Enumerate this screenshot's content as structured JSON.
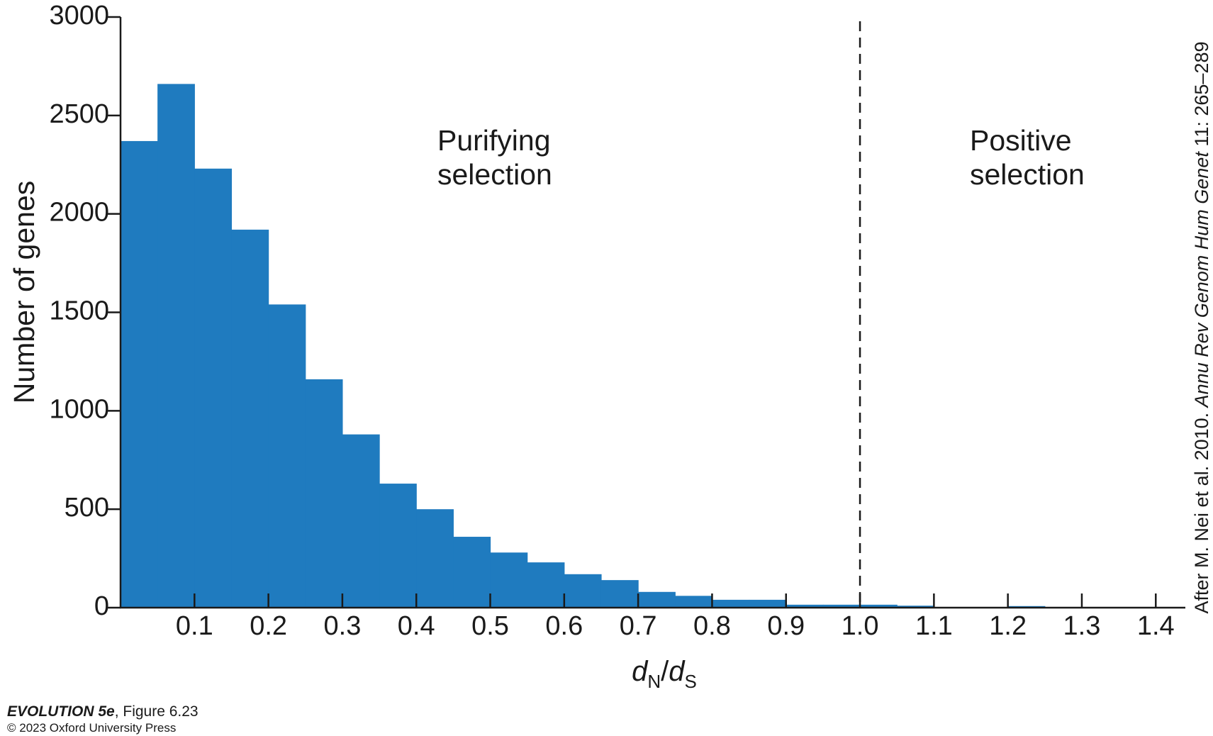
{
  "chart_data": {
    "type": "bar",
    "bin_width": 0.05,
    "bin_starts": [
      0.0,
      0.05,
      0.1,
      0.15,
      0.2,
      0.25,
      0.3,
      0.35,
      0.4,
      0.45,
      0.5,
      0.55,
      0.6,
      0.65,
      0.7,
      0.75,
      0.8,
      0.85,
      0.9,
      0.95,
      1.0,
      1.05,
      1.1,
      1.15,
      1.2
    ],
    "values": [
      2370,
      2660,
      2230,
      1920,
      1540,
      1160,
      880,
      630,
      500,
      360,
      280,
      230,
      170,
      140,
      80,
      60,
      40,
      40,
      15,
      15,
      15,
      10,
      2,
      2,
      8
    ],
    "bar_color": "#1f7bbf",
    "xlim": [
      0.0,
      1.44
    ],
    "ylim": [
      0,
      3000
    ],
    "x_ticks": [
      "0.1",
      "0.2",
      "0.3",
      "0.4",
      "0.5",
      "0.6",
      "0.7",
      "0.8",
      "0.9",
      "1.0",
      "1.1",
      "1.2",
      "1.3",
      "1.4"
    ],
    "y_ticks": [
      "0",
      "500",
      "1000",
      "1500",
      "2000",
      "2500",
      "3000"
    ],
    "ylabel": "Number of genes",
    "xlabel": {
      "d1": "d",
      "sub1": "N",
      "slash": "/",
      "d2": "d",
      "sub2": "S"
    },
    "reference_line_x": 1.0,
    "annotations": {
      "purifying": [
        "Purifying",
        "selection"
      ],
      "positive": [
        "Positive",
        "selection"
      ]
    },
    "source_credit": {
      "prefix": "After M. Nei et al. 2010. ",
      "journal": "Annu Rev Genom Hum Genet",
      "suffix": " 11: 265–289"
    }
  },
  "footer": {
    "book": "EVOLUTION 5e",
    "figure": ", Figure 6.23",
    "copyright": "© 2023 Oxford University Press"
  }
}
